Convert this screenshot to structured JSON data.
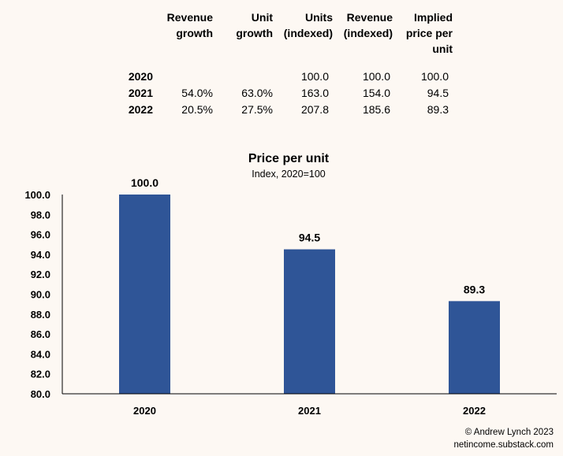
{
  "table": {
    "headers": [
      "Revenue\ngrowth",
      "Unit\ngrowth",
      "Units\n(indexed)",
      "Revenue\n(indexed)",
      "Implied\nprice per\nunit"
    ],
    "rows": [
      {
        "year": "2020",
        "cells": [
          "",
          "",
          "100.0",
          "100.0",
          "100.0"
        ]
      },
      {
        "year": "2021",
        "cells": [
          "54.0%",
          "63.0%",
          "163.0",
          "154.0",
          "94.5"
        ]
      },
      {
        "year": "2022",
        "cells": [
          "20.5%",
          "27.5%",
          "207.8",
          "185.6",
          "89.3"
        ]
      }
    ]
  },
  "chart_data": {
    "type": "bar",
    "title": "Price per unit",
    "subtitle": "Index, 2020=100",
    "categories": [
      "2020",
      "2021",
      "2022"
    ],
    "values": [
      100.0,
      94.5,
      89.3
    ],
    "data_labels": [
      "100.0",
      "94.5",
      "89.3"
    ],
    "ylim": [
      80,
      100
    ],
    "yticks": [
      "80.0",
      "82.0",
      "84.0",
      "86.0",
      "88.0",
      "90.0",
      "92.0",
      "94.0",
      "96.0",
      "98.0",
      "100.0"
    ],
    "grid": false,
    "bar_color": "#2f5597"
  },
  "footer": {
    "copyright": "© Andrew Lynch 2023",
    "site": "netincome.substack.com"
  }
}
